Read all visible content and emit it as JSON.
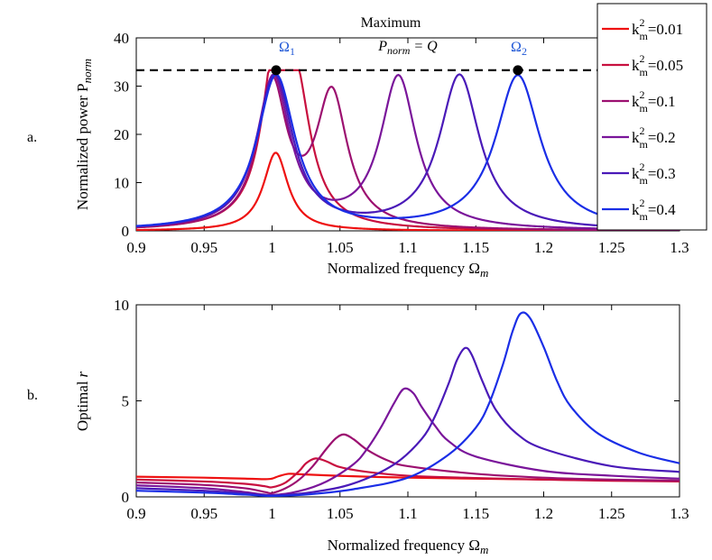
{
  "panels": {
    "a": {
      "label": "a.",
      "chart_data": {
        "type": "line",
        "title": "",
        "xlabel_main": "Normalized frequency Ω",
        "xlabel_sub": "m",
        "ylabel_main": "Normalized power P",
        "ylabel_sub": "norm",
        "xlim": [
          0.9,
          1.3
        ],
        "ylim": [
          0,
          40
        ],
        "xticks": [
          0.9,
          0.95,
          1,
          1.05,
          1.1,
          1.15,
          1.2,
          1.25,
          1.3
        ],
        "xtick_labels": [
          "0.9",
          "0.95",
          "1",
          "1.05",
          "1.1",
          "1.15",
          "1.2",
          "1.25",
          "1.3"
        ],
        "yticks": [
          0,
          10,
          20,
          30,
          40
        ],
        "ytick_labels": [
          "0",
          "10",
          "20",
          "30",
          "40"
        ],
        "grid": false,
        "legend_position": "top-right (outside)",
        "reference_line": {
          "y": 33.3,
          "style": "dashed",
          "color": "#000000"
        },
        "annotations": {
          "maximum_line1": "Maximum",
          "maximum_eq_lhs": "P",
          "maximum_eq_sub": "norm",
          "maximum_eq_rhs": "= Q",
          "omega1": "Ω",
          "omega1_sub": "1",
          "omega2": "Ω",
          "omega2_sub": "2",
          "omega_color": "#1f57d6"
        },
        "marked_points": [
          {
            "name": "Ω1",
            "x": 1.003,
            "y": 33.3
          },
          {
            "name": "Ω2",
            "x": 1.181,
            "y": 33.3
          }
        ],
        "series": [
          {
            "name": "k²m=0.01",
            "label_base": "k",
            "label_sup": "2",
            "label_sub": "m",
            "label_val": "=0.01",
            "color": "#ee1111",
            "peaks": [
              {
                "x": 1.0027,
                "y": 16.2,
                "w": 0.011
              }
            ]
          },
          {
            "name": "k²m=0.05",
            "label_base": "k",
            "label_sup": "2",
            "label_sub": "m",
            "label_val": "=0.05",
            "color": "#c8103f",
            "peaks": [
              {
                "x": 1.0025,
                "y": 31.5,
                "w": 0.012
              },
              {
                "x": 1.018,
                "y": 24.0,
                "w": 0.013
              }
            ]
          },
          {
            "name": "k²m=0.1",
            "label_base": "k",
            "label_sup": "2",
            "label_sub": "m",
            "label_val": "=0.1",
            "color": "#9c1070",
            "peaks": [
              {
                "x": 1.0,
                "y": 29.5,
                "w": 0.013
              },
              {
                "x": 1.044,
                "y": 27.5,
                "w": 0.014
              }
            ]
          },
          {
            "name": "k²m=0.2",
            "label_base": "k",
            "label_sup": "2",
            "label_sub": "m",
            "label_val": "=0.2",
            "color": "#7a159a",
            "peaks": [
              {
                "x": 1.001,
                "y": 31.5,
                "w": 0.015
              },
              {
                "x": 1.093,
                "y": 31.5,
                "w": 0.016
              }
            ]
          },
          {
            "name": "k²m=0.3",
            "label_base": "k",
            "label_sup": "2",
            "label_sub": "m",
            "label_val": "=0.3",
            "color": "#4a1ab8",
            "peaks": [
              {
                "x": 1.002,
                "y": 32.0,
                "w": 0.016
              },
              {
                "x": 1.138,
                "y": 32.0,
                "w": 0.018
              }
            ]
          },
          {
            "name": "k²m=0.4",
            "label_base": "k",
            "label_sup": "2",
            "label_sub": "m",
            "label_val": "=0.4",
            "color": "#1a2ee6",
            "peaks": [
              {
                "x": 1.003,
                "y": 32.0,
                "w": 0.017
              },
              {
                "x": 1.181,
                "y": 32.0,
                "w": 0.02
              }
            ]
          }
        ]
      }
    },
    "b": {
      "label": "b.",
      "chart_data": {
        "type": "line",
        "title": "",
        "xlabel_main": "Normalized frequency Ω",
        "xlabel_sub": "m",
        "ylabel_main": "Optimal",
        "ylabel_var": "r",
        "xlim": [
          0.9,
          1.3
        ],
        "ylim": [
          0,
          10
        ],
        "xticks": [
          0.9,
          0.95,
          1,
          1.05,
          1.1,
          1.15,
          1.2,
          1.25,
          1.3
        ],
        "xtick_labels": [
          "0.9",
          "0.95",
          "1",
          "1.05",
          "1.1",
          "1.15",
          "1.2",
          "1.25",
          "1.3"
        ],
        "yticks": [
          0,
          5,
          10
        ],
        "ytick_labels": [
          "0",
          "5",
          "10"
        ],
        "grid": false,
        "series": [
          {
            "name": "k²m=0.01",
            "color": "#ee1111",
            "x": [
              0.9,
              0.95,
              0.98,
              0.995,
              1.0,
              1.005,
              1.012,
              1.02,
              1.04,
              1.07,
              1.1,
              1.15,
              1.2,
              1.25,
              1.3
            ],
            "y": [
              1.05,
              1.0,
              0.95,
              0.92,
              0.95,
              1.08,
              1.2,
              1.18,
              1.12,
              1.05,
              1.0,
              0.95,
              0.9,
              0.86,
              0.84
            ]
          },
          {
            "name": "k²m=0.05",
            "color": "#c8103f",
            "x": [
              0.9,
              0.95,
              0.98,
              0.995,
              1.0,
              1.01,
              1.02,
              1.025,
              1.032,
              1.04,
              1.05,
              1.07,
              1.1,
              1.15,
              1.2,
              1.25,
              1.3
            ],
            "y": [
              0.9,
              0.8,
              0.68,
              0.55,
              0.5,
              0.75,
              1.35,
              1.75,
              2.0,
              1.85,
              1.55,
              1.3,
              1.1,
              0.98,
              0.9,
              0.84,
              0.8
            ]
          },
          {
            "name": "k²m=0.1",
            "color": "#9c1070",
            "x": [
              0.9,
              0.95,
              0.98,
              0.995,
              1.0,
              1.01,
              1.02,
              1.03,
              1.04,
              1.047,
              1.053,
              1.06,
              1.07,
              1.085,
              1.1,
              1.15,
              1.2,
              1.25,
              1.3
            ],
            "y": [
              0.75,
              0.62,
              0.45,
              0.25,
              0.2,
              0.45,
              0.9,
              1.6,
              2.5,
              3.05,
              3.25,
              3.0,
              2.45,
              1.9,
              1.6,
              1.2,
              1.0,
              0.9,
              0.85
            ]
          },
          {
            "name": "k²m=0.2",
            "color": "#7a159a",
            "x": [
              0.9,
              0.95,
              0.98,
              1.0,
              1.02,
              1.04,
              1.06,
              1.07,
              1.08,
              1.09,
              1.097,
              1.104,
              1.11,
              1.12,
              1.13,
              1.15,
              1.2,
              1.25,
              1.3
            ],
            "y": [
              0.6,
              0.45,
              0.25,
              0.1,
              0.3,
              0.8,
              1.7,
              2.5,
              3.6,
              4.9,
              5.62,
              5.4,
              4.7,
              3.7,
              2.9,
              2.1,
              1.35,
              1.1,
              0.95
            ]
          },
          {
            "name": "k²m=0.3",
            "color": "#4a1ab8",
            "x": [
              0.9,
              0.95,
              0.98,
              1.0,
              1.03,
              1.06,
              1.09,
              1.11,
              1.12,
              1.13,
              1.136,
              1.142,
              1.147,
              1.155,
              1.165,
              1.18,
              1.2,
              1.25,
              1.3
            ],
            "y": [
              0.45,
              0.32,
              0.18,
              0.08,
              0.25,
              0.7,
              1.7,
              3.0,
              4.2,
              5.9,
              7.1,
              7.75,
              7.4,
              6.0,
              4.5,
              3.3,
              2.5,
              1.6,
              1.3
            ]
          },
          {
            "name": "k²m=0.4",
            "color": "#1a2ee6",
            "x": [
              0.9,
              0.95,
              0.98,
              1.0,
              1.03,
              1.06,
              1.1,
              1.13,
              1.15,
              1.16,
              1.17,
              1.177,
              1.183,
              1.19,
              1.2,
              1.21,
              1.22,
              1.24,
              1.27,
              1.3
            ],
            "y": [
              0.32,
              0.22,
              0.12,
              0.05,
              0.15,
              0.4,
              1.0,
              2.2,
              3.6,
              4.9,
              6.9,
              8.6,
              9.55,
              9.3,
              7.8,
              6.0,
              4.7,
              3.3,
              2.3,
              1.75
            ]
          }
        ]
      }
    }
  }
}
